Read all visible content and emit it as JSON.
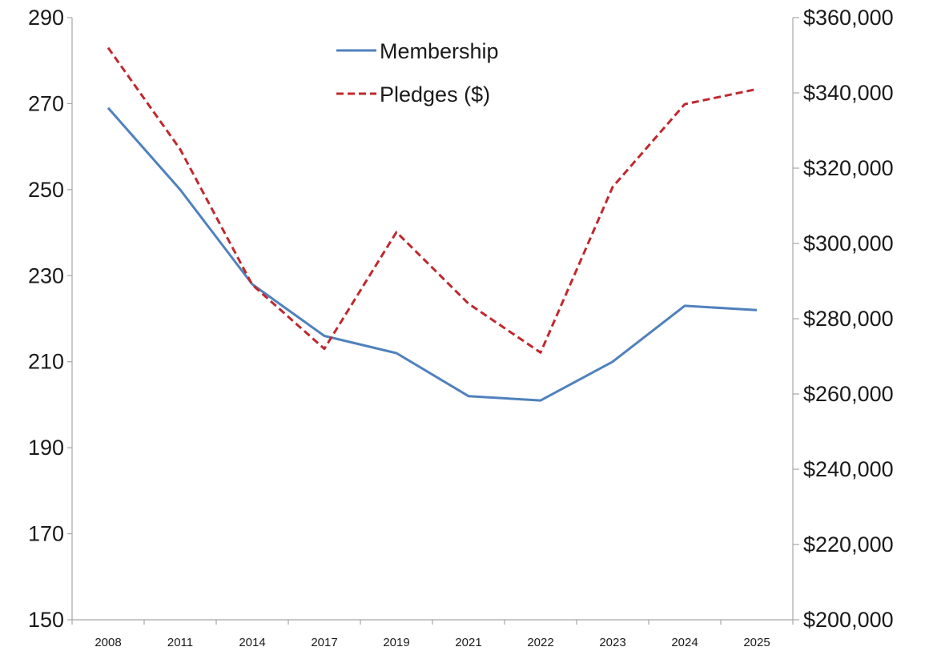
{
  "chart_data": {
    "type": "line",
    "categories": [
      "2008",
      "2011",
      "2014",
      "2017",
      "2019",
      "2021",
      "2022",
      "2023",
      "2024",
      "2025"
    ],
    "series": [
      {
        "name": "Membership",
        "axis": "left",
        "style": "solid",
        "color": "#4f81bd",
        "values": [
          269,
          250,
          228,
          216,
          212,
          202,
          201,
          210,
          223,
          222
        ]
      },
      {
        "name": "Pledges ($)",
        "axis": "right",
        "style": "dashed",
        "color": "#c0282d",
        "values": [
          352000,
          325000,
          289000,
          272000,
          303000,
          284000,
          271000,
          315000,
          337000,
          341000
        ]
      }
    ],
    "y_left": {
      "ylim": [
        150,
        290
      ],
      "ticks": [
        150,
        170,
        190,
        210,
        230,
        250,
        270,
        290
      ],
      "tick_labels": [
        "150",
        "170",
        "190",
        "210",
        "230",
        "250",
        "270",
        "290"
      ]
    },
    "y_right": {
      "ylim": [
        200000,
        360000
      ],
      "ticks": [
        200000,
        220000,
        240000,
        260000,
        280000,
        300000,
        320000,
        340000,
        360000
      ],
      "tick_labels": [
        "$200,000",
        "$220,000",
        "$240,000",
        "$260,000",
        "$280,000",
        "$300,000",
        "$320,000",
        "$340,000",
        "$360,000"
      ]
    },
    "legend": {
      "position": "top-center",
      "entries": [
        "Membership",
        "Pledges ($)"
      ]
    },
    "grid": false
  }
}
